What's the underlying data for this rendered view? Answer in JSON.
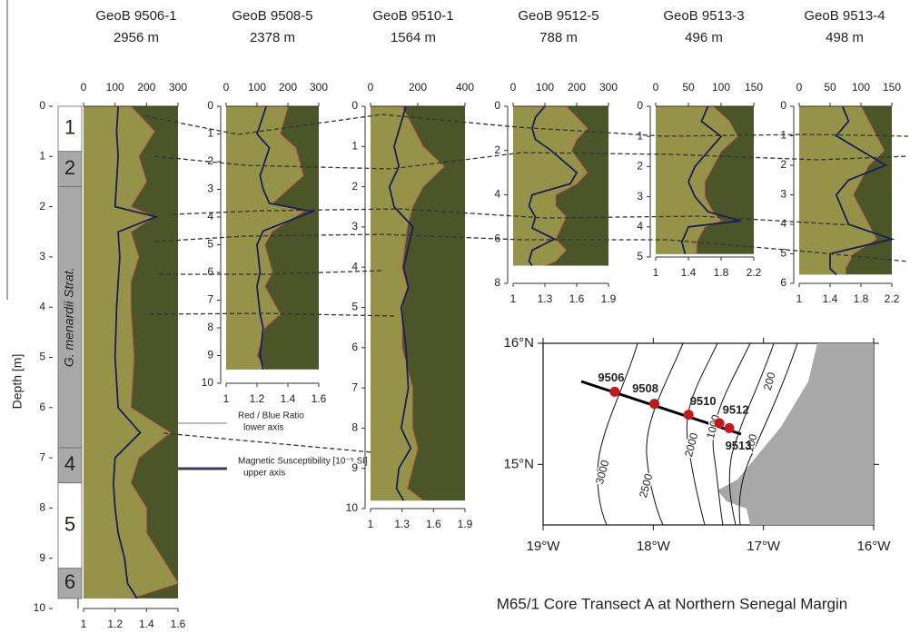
{
  "chart_data": [
    {
      "type": "core",
      "title": "GeoB 9506-1",
      "subtitle": "2956 m",
      "ylim": [
        0,
        10
      ],
      "yticks": [
        0,
        1,
        2,
        3,
        4,
        5,
        6,
        7,
        8,
        9,
        10
      ],
      "xlim": [
        0,
        300
      ],
      "xticks": [
        0,
        100,
        200,
        300
      ],
      "x2lim": [
        1,
        1.6
      ],
      "x2ticks": [
        1,
        1.2,
        1.4,
        1.6
      ],
      "depth": [
        0,
        0.5,
        1,
        1.5,
        2,
        2.2,
        2.5,
        3,
        3.5,
        4,
        5,
        6,
        6.5,
        7,
        7.5,
        8,
        8.5,
        9,
        9.5,
        9.8
      ],
      "susceptibility": [
        110,
        105,
        110,
        105,
        100,
        230,
        110,
        115,
        110,
        105,
        100,
        110,
        180,
        100,
        95,
        100,
        110,
        130,
        140,
        170
      ],
      "red_blue_ratio": [
        1.3,
        1.45,
        1.35,
        1.4,
        1.3,
        1.45,
        1.3,
        1.35,
        1.3,
        1.3,
        1.32,
        1.3,
        1.55,
        1.35,
        1.3,
        1.4,
        1.4,
        1.5,
        1.6,
        1.3
      ],
      "units": [
        {
          "label": "1",
          "from": 0,
          "to": 0.9,
          "color": "#ffffff"
        },
        {
          "label": "2",
          "from": 0.9,
          "to": 1.6,
          "color": "#a9a9a9"
        },
        {
          "label": "G. menardii Strat.",
          "from": 1.6,
          "to": 6.8,
          "color": "#a9a9a9"
        },
        {
          "label": "4",
          "from": 6.8,
          "to": 7.5,
          "color": "#a9a9a9"
        },
        {
          "label": "5",
          "from": 7.5,
          "to": 9.2,
          "color": "#ffffff"
        },
        {
          "label": "6",
          "from": 9.2,
          "to": 9.8,
          "color": "#a9a9a9"
        }
      ]
    },
    {
      "type": "core",
      "title": "GeoB 9508-5",
      "subtitle": "2378 m",
      "ylim": [
        0,
        10
      ],
      "yticks": [
        0,
        1,
        2,
        3,
        4,
        5,
        6,
        7,
        8,
        9,
        10
      ],
      "xlim": [
        0,
        300
      ],
      "xticks": [
        0,
        100,
        200,
        300
      ],
      "x2lim": [
        1,
        1.6
      ],
      "x2ticks": [
        1,
        1.2,
        1.4,
        1.6
      ],
      "depth": [
        0,
        1,
        1.5,
        2.5,
        3,
        3.5,
        3.8,
        4.5,
        5,
        6,
        6.5,
        7.5,
        8,
        9,
        9.5
      ],
      "susceptibility": [
        130,
        100,
        140,
        110,
        120,
        140,
        280,
        120,
        100,
        110,
        100,
        110,
        120,
        110,
        120
      ],
      "red_blue_ratio": [
        1.4,
        1.35,
        1.45,
        1.5,
        1.4,
        1.3,
        1.5,
        1.3,
        1.25,
        1.3,
        1.25,
        1.35,
        1.25,
        1.2,
        1.25
      ]
    },
    {
      "type": "core",
      "title": "GeoB 9510-1",
      "subtitle": "1564 m",
      "ylim": [
        0,
        10
      ],
      "yticks": [
        0,
        1,
        2,
        3,
        4,
        5,
        6,
        7,
        8,
        9,
        10
      ],
      "xlim": [
        0,
        400
      ],
      "xticks": [
        0,
        200,
        400
      ],
      "x2lim": [
        1,
        1.9
      ],
      "x2ticks": [
        1,
        1.3,
        1.6,
        1.9
      ],
      "depth": [
        0,
        1,
        1.5,
        2,
        2.5,
        3,
        4,
        4.5,
        5,
        6,
        7,
        8,
        8.5,
        9,
        9.5,
        9.8
      ],
      "susceptibility": [
        150,
        100,
        120,
        80,
        100,
        180,
        140,
        160,
        130,
        150,
        160,
        130,
        170,
        120,
        110,
        140
      ],
      "red_blue_ratio": [
        1.3,
        1.5,
        1.7,
        1.5,
        1.4,
        1.35,
        1.3,
        1.35,
        1.3,
        1.3,
        1.4,
        1.4,
        1.45,
        1.4,
        1.35,
        1.5
      ]
    },
    {
      "type": "core",
      "title": "GeoB 9512-5",
      "subtitle": "788 m",
      "ylim": [
        0,
        8
      ],
      "yticks": [
        0,
        2,
        4,
        6,
        8
      ],
      "xlim": [
        0,
        300
      ],
      "xticks": [
        0,
        100,
        200,
        300
      ],
      "x2lim": [
        1,
        1.9
      ],
      "x2ticks": [
        1,
        1.3,
        1.6,
        1.9
      ],
      "depth": [
        0,
        0.5,
        1,
        1.5,
        2,
        3,
        3.5,
        4,
        4.5,
        5,
        5.5,
        6,
        6.5,
        7,
        7.2
      ],
      "susceptibility": [
        100,
        70,
        60,
        70,
        120,
        200,
        180,
        60,
        50,
        70,
        60,
        130,
        60,
        50,
        60
      ],
      "red_blue_ratio": [
        1.5,
        1.6,
        1.7,
        1.6,
        1.55,
        1.7,
        1.6,
        1.4,
        1.4,
        1.5,
        1.45,
        1.4,
        1.5,
        1.4,
        1.3
      ]
    },
    {
      "type": "core",
      "title": "GeoB 9513-3",
      "subtitle": "496 m",
      "ylim": [
        0,
        5
      ],
      "yticks": [
        0,
        1,
        2,
        3,
        4,
        5
      ],
      "xlim": [
        0,
        150
      ],
      "xticks": [
        0,
        50,
        100,
        150
      ],
      "x2lim": [
        1,
        2.2
      ],
      "x2ticks": [
        1,
        1.4,
        1.8,
        2.2
      ],
      "depth": [
        0,
        0.5,
        1,
        1.5,
        2,
        2.5,
        3,
        3.5,
        3.8,
        4,
        4.5,
        4.9
      ],
      "susceptibility": [
        80,
        70,
        100,
        80,
        60,
        50,
        60,
        80,
        130,
        50,
        40,
        45
      ],
      "red_blue_ratio": [
        1.7,
        1.9,
        2.0,
        1.8,
        1.7,
        1.6,
        1.6,
        1.7,
        1.8,
        1.6,
        1.5,
        1.5
      ]
    },
    {
      "type": "core",
      "title": "GeoB 9513-4",
      "subtitle": "498 m",
      "ylim": [
        0,
        6
      ],
      "yticks": [
        0,
        1,
        2,
        3,
        4,
        5,
        6
      ],
      "xlim": [
        0,
        150
      ],
      "xticks": [
        0,
        50,
        100,
        150
      ],
      "x2lim": [
        1,
        2.2
      ],
      "x2ticks": [
        1,
        1.4,
        1.8,
        2.2
      ],
      "depth": [
        0,
        0.5,
        1,
        1.5,
        2,
        2.5,
        3,
        3.5,
        4,
        4.5,
        5,
        5.5,
        5.7
      ],
      "susceptibility": [
        70,
        80,
        60,
        100,
        140,
        80,
        60,
        70,
        80,
        150,
        50,
        50,
        60
      ],
      "red_blue_ratio": [
        1.8,
        1.9,
        2.0,
        2.1,
        1.9,
        1.8,
        1.7,
        1.8,
        1.9,
        2.0,
        1.7,
        1.6,
        1.6
      ]
    },
    {
      "type": "map",
      "title": "M65/1 Core Transect A at Northern Senegal Margin",
      "xlim": [
        -19,
        -16
      ],
      "xticks": [
        {
          "value": -19,
          "label": "19°W"
        },
        {
          "value": -18,
          "label": "18°W"
        },
        {
          "value": -17,
          "label": "17°W"
        },
        {
          "value": -16,
          "label": "16°W"
        }
      ],
      "ylim": [
        14.5,
        16
      ],
      "yticks": [
        {
          "value": 15,
          "label": "15°N"
        },
        {
          "value": 16,
          "label": "16°N"
        }
      ],
      "stations": [
        {
          "name": "9506",
          "lon": -18.35,
          "lat": 15.6
        },
        {
          "name": "9508",
          "lon": -17.99,
          "lat": 15.5
        },
        {
          "name": "9510",
          "lon": -17.68,
          "lat": 15.41
        },
        {
          "name": "9512",
          "lon": -17.4,
          "lat": 15.34
        },
        {
          "name": "9513",
          "lon": -17.31,
          "lat": 15.3
        }
      ],
      "station_color": "#c8161d",
      "contour_labels": [
        "3000",
        "2500",
        "2000",
        "1000",
        "200",
        "100"
      ]
    }
  ],
  "depth_label": "Depth [m]",
  "legend": [
    {
      "name": "Red / Blue Ratio",
      "note": "lower axis",
      "color": "#c89a9a"
    },
    {
      "name": "Magnetic Susceptibility [10⁻⁵ SI]",
      "note": "upper axis",
      "color": "#3d3d5c"
    }
  ]
}
